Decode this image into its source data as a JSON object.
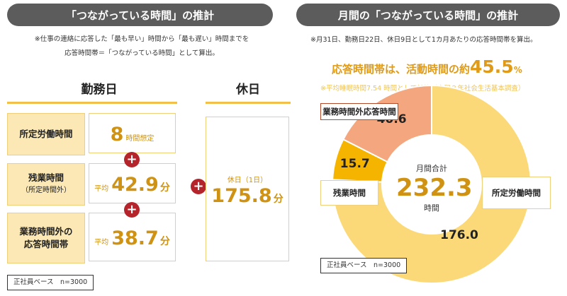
{
  "left": {
    "title": "「つながっている時間」の推計",
    "note_lines": [
      "※仕事の連絡に応答した「最も早い」時間から「最も遅い」時間までを",
      "応答時間帯＝「つながっている時間」として算出。"
    ],
    "workday": {
      "header": "勤務日",
      "rows": [
        {
          "label": "所定労働時間",
          "sublabel": "",
          "prefix": "",
          "value": "8",
          "suffix": "時間想定",
          "unit": ""
        },
        {
          "label": "残業時間",
          "sublabel": "（所定時間外）",
          "prefix": "平均",
          "value": "42.9",
          "suffix": "",
          "unit": "分"
        },
        {
          "label": "業務時間外の",
          "sublabel": "応答時間帯",
          "prefix": "平均",
          "value": "38.7",
          "suffix": "",
          "unit": "分"
        }
      ],
      "plus_symbol": "+"
    },
    "holiday": {
      "header": "休日",
      "caption": "休日（1日）",
      "value": "175.8",
      "unit": "分"
    },
    "base_note": "正社員ベース　n=3000"
  },
  "right": {
    "title": "月間の「つながっている時間」の推計",
    "note": "※月31日、勤務日22日、休日9日として1カ月あたりの応答時間帯を算出。",
    "headline_prefix": "応答時間帯は、活動時間の約",
    "headline_value": "45.5",
    "headline_unit": "%",
    "sub_note": "※平均睡眠時間7.54 時間として計算（令和３年社会生活基本調査）",
    "center_caption": "月間合計",
    "center_value": "232.3",
    "center_unit": "時間",
    "base_note": "正社員ベース　n=3000"
  },
  "colors": {
    "pill": "#5c5c5c",
    "accent_gold": "#cf9212",
    "plus_red": "#b5242a",
    "donut_light": "#fbd978",
    "donut_mid": "#f5b400",
    "donut_salmon": "#f4a77e",
    "headline": "#e09a16"
  },
  "chart_data": {
    "type": "pie",
    "categories": [
      "所定労働時間",
      "残業時間",
      "業務時間外応答時間"
    ],
    "values": [
      176.0,
      15.7,
      40.6
    ],
    "value_labels": [
      "176.0",
      "15.7",
      "40.6"
    ],
    "colors": [
      "#fbd978",
      "#f5b400",
      "#f4a77e"
    ],
    "total": 232.3,
    "share_of_activity_pct": 45.5
  }
}
